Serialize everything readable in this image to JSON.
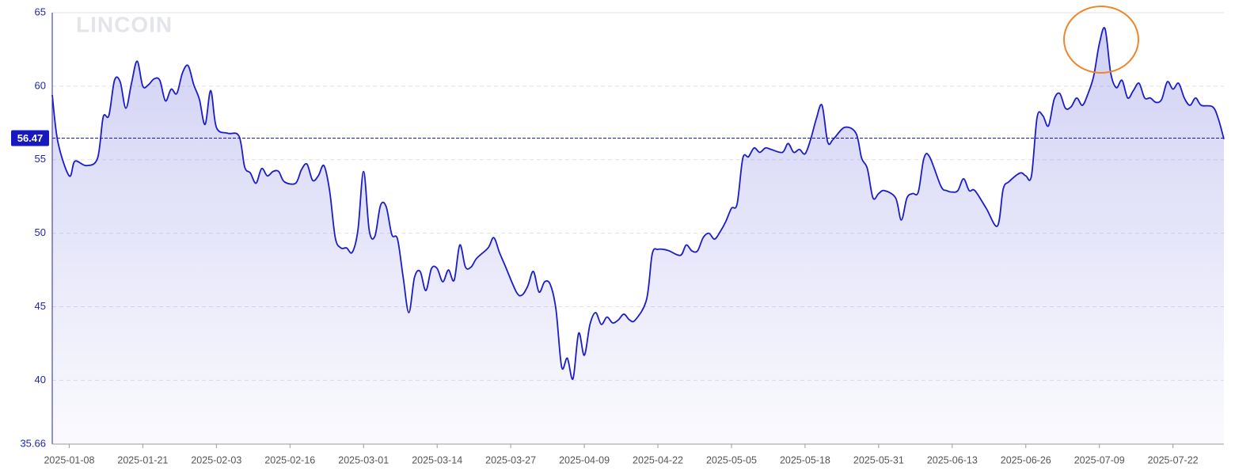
{
  "chart_data": {
    "type": "area",
    "watermark": "LINCOIN",
    "reference_line": 56.47,
    "color": "#1c1cc8",
    "grid": true,
    "xlim": [
      "2025-01-05",
      "2025-07-31"
    ],
    "xticks": [
      "2025-01-08",
      "2025-01-21",
      "2025-02-03",
      "2025-02-16",
      "2025-03-01",
      "2025-03-14",
      "2025-03-27",
      "2025-04-09",
      "2025-04-22",
      "2025-05-05",
      "2025-05-18",
      "2025-05-31",
      "2025-06-13",
      "2025-06-26",
      "2025-07-09",
      "2025-07-22"
    ],
    "ylim": [
      35.66,
      65
    ],
    "yticks": [
      35.66,
      40,
      45,
      50,
      55,
      60,
      65
    ],
    "x": [
      "2025-01-05",
      "2025-01-06",
      "2025-01-08",
      "2025-01-09",
      "2025-01-11",
      "2025-01-13",
      "2025-01-14",
      "2025-01-15",
      "2025-01-16",
      "2025-01-17",
      "2025-01-18",
      "2025-01-19",
      "2025-01-20",
      "2025-01-21",
      "2025-01-22",
      "2025-01-23",
      "2025-01-24",
      "2025-01-25",
      "2025-01-26",
      "2025-01-27",
      "2025-01-28",
      "2025-01-29",
      "2025-01-30",
      "2025-01-31",
      "2025-02-01",
      "2025-02-02",
      "2025-02-03",
      "2025-02-05",
      "2025-02-07",
      "2025-02-08",
      "2025-02-09",
      "2025-02-10",
      "2025-02-11",
      "2025-02-12",
      "2025-02-13",
      "2025-02-14",
      "2025-02-15",
      "2025-02-17",
      "2025-02-18",
      "2025-02-19",
      "2025-02-20",
      "2025-02-21",
      "2025-02-22",
      "2025-02-23",
      "2025-02-24",
      "2025-02-25",
      "2025-02-26",
      "2025-02-27",
      "2025-02-28",
      "2025-03-01",
      "2025-03-02",
      "2025-03-03",
      "2025-03-04",
      "2025-03-05",
      "2025-03-06",
      "2025-03-07",
      "2025-03-08",
      "2025-03-09",
      "2025-03-10",
      "2025-03-11",
      "2025-03-12",
      "2025-03-13",
      "2025-03-14",
      "2025-03-15",
      "2025-03-16",
      "2025-03-17",
      "2025-03-18",
      "2025-03-19",
      "2025-03-20",
      "2025-03-21",
      "2025-03-23",
      "2025-03-24",
      "2025-03-25",
      "2025-03-26",
      "2025-03-28",
      "2025-03-29",
      "2025-03-30",
      "2025-03-31",
      "2025-04-01",
      "2025-04-02",
      "2025-04-03",
      "2025-04-04",
      "2025-04-05",
      "2025-04-06",
      "2025-04-07",
      "2025-04-08",
      "2025-04-09",
      "2025-04-10",
      "2025-04-11",
      "2025-04-12",
      "2025-04-13",
      "2025-04-14",
      "2025-04-15",
      "2025-04-16",
      "2025-04-17",
      "2025-04-18",
      "2025-04-20",
      "2025-04-21",
      "2025-04-22",
      "2025-04-23",
      "2025-04-24",
      "2025-04-26",
      "2025-04-27",
      "2025-04-28",
      "2025-04-29",
      "2025-04-30",
      "2025-05-01",
      "2025-05-02",
      "2025-05-03",
      "2025-05-04",
      "2025-05-05",
      "2025-05-06",
      "2025-05-07",
      "2025-05-08",
      "2025-05-09",
      "2025-05-10",
      "2025-05-11",
      "2025-05-12",
      "2025-05-14",
      "2025-05-15",
      "2025-05-16",
      "2025-05-17",
      "2025-05-18",
      "2025-05-19",
      "2025-05-20",
      "2025-05-21",
      "2025-05-22",
      "2025-05-23",
      "2025-05-25",
      "2025-05-27",
      "2025-05-28",
      "2025-05-29",
      "2025-05-30",
      "2025-05-31",
      "2025-06-01",
      "2025-06-03",
      "2025-06-04",
      "2025-06-05",
      "2025-06-06",
      "2025-06-07",
      "2025-06-08",
      "2025-06-09",
      "2025-06-11",
      "2025-06-12",
      "2025-06-13",
      "2025-06-14",
      "2025-06-15",
      "2025-06-16",
      "2025-06-17",
      "2025-06-19",
      "2025-06-21",
      "2025-06-22",
      "2025-06-23",
      "2025-06-25",
      "2025-06-26",
      "2025-06-27",
      "2025-06-28",
      "2025-06-29",
      "2025-06-30",
      "2025-07-01",
      "2025-07-02",
      "2025-07-03",
      "2025-07-04",
      "2025-07-05",
      "2025-07-06",
      "2025-07-07",
      "2025-07-08",
      "2025-07-09",
      "2025-07-10",
      "2025-07-11",
      "2025-07-12",
      "2025-07-13",
      "2025-07-14",
      "2025-07-15",
      "2025-07-16",
      "2025-07-17",
      "2025-07-18",
      "2025-07-19",
      "2025-07-20",
      "2025-07-21",
      "2025-07-22",
      "2025-07-23",
      "2025-07-24",
      "2025-07-25",
      "2025-07-26",
      "2025-07-27",
      "2025-07-29",
      "2025-07-30",
      "2025-07-31"
    ],
    "values": [
      59.4,
      56.2,
      53.9,
      54.9,
      54.6,
      55.1,
      57.9,
      58.0,
      60.4,
      60.3,
      58.5,
      60.2,
      61.7,
      60.0,
      60.1,
      60.5,
      60.4,
      59.0,
      59.8,
      59.5,
      60.9,
      61.4,
      60.1,
      59.1,
      57.4,
      59.7,
      57.2,
      56.8,
      56.6,
      54.5,
      54.1,
      53.4,
      54.4,
      53.9,
      54.2,
      54.2,
      53.5,
      53.4,
      54.3,
      54.7,
      53.6,
      53.9,
      54.6,
      52.9,
      49.7,
      49.0,
      49.0,
      48.7,
      50.2,
      54.2,
      50.2,
      49.8,
      51.9,
      51.8,
      49.9,
      49.6,
      47.0,
      44.6,
      47.0,
      47.4,
      46.1,
      47.6,
      47.6,
      46.7,
      47.5,
      46.8,
      49.2,
      47.7,
      47.7,
      48.3,
      49.0,
      49.7,
      48.7,
      47.8,
      46.0,
      45.8,
      46.4,
      47.4,
      46.0,
      46.7,
      46.5,
      44.8,
      40.9,
      41.5,
      40.1,
      43.2,
      41.7,
      43.8,
      44.6,
      43.8,
      44.3,
      43.9,
      44.1,
      44.5,
      44.1,
      44.1,
      45.5,
      48.6,
      48.9,
      48.9,
      48.8,
      48.5,
      49.2,
      48.8,
      48.8,
      49.7,
      50.0,
      49.6,
      50.1,
      50.8,
      51.7,
      52.0,
      55.1,
      55.2,
      55.8,
      55.5,
      55.8,
      55.7,
      55.5,
      56.1,
      55.5,
      55.7,
      55.4,
      56.4,
      57.8,
      58.7,
      56.2,
      56.4,
      57.2,
      56.8,
      55.1,
      54.4,
      52.4,
      52.7,
      52.9,
      52.4,
      50.9,
      52.4,
      52.7,
      52.8,
      55.1,
      55.2,
      53.2,
      52.9,
      52.8,
      52.9,
      53.7,
      52.9,
      52.9,
      51.7,
      50.5,
      53.0,
      53.5,
      54.1,
      53.9,
      53.9,
      57.9,
      58.0,
      57.3,
      59.1,
      59.5,
      58.5,
      58.6,
      59.2,
      58.7,
      59.5,
      60.7,
      62.9,
      63.9,
      60.9,
      59.9,
      60.4,
      59.2,
      59.7,
      60.2,
      59.2,
      59.2,
      58.9,
      59.1,
      60.3,
      59.8,
      60.2,
      59.2,
      58.7,
      59.2,
      58.7,
      58.6,
      57.8,
      56.4
    ]
  }
}
